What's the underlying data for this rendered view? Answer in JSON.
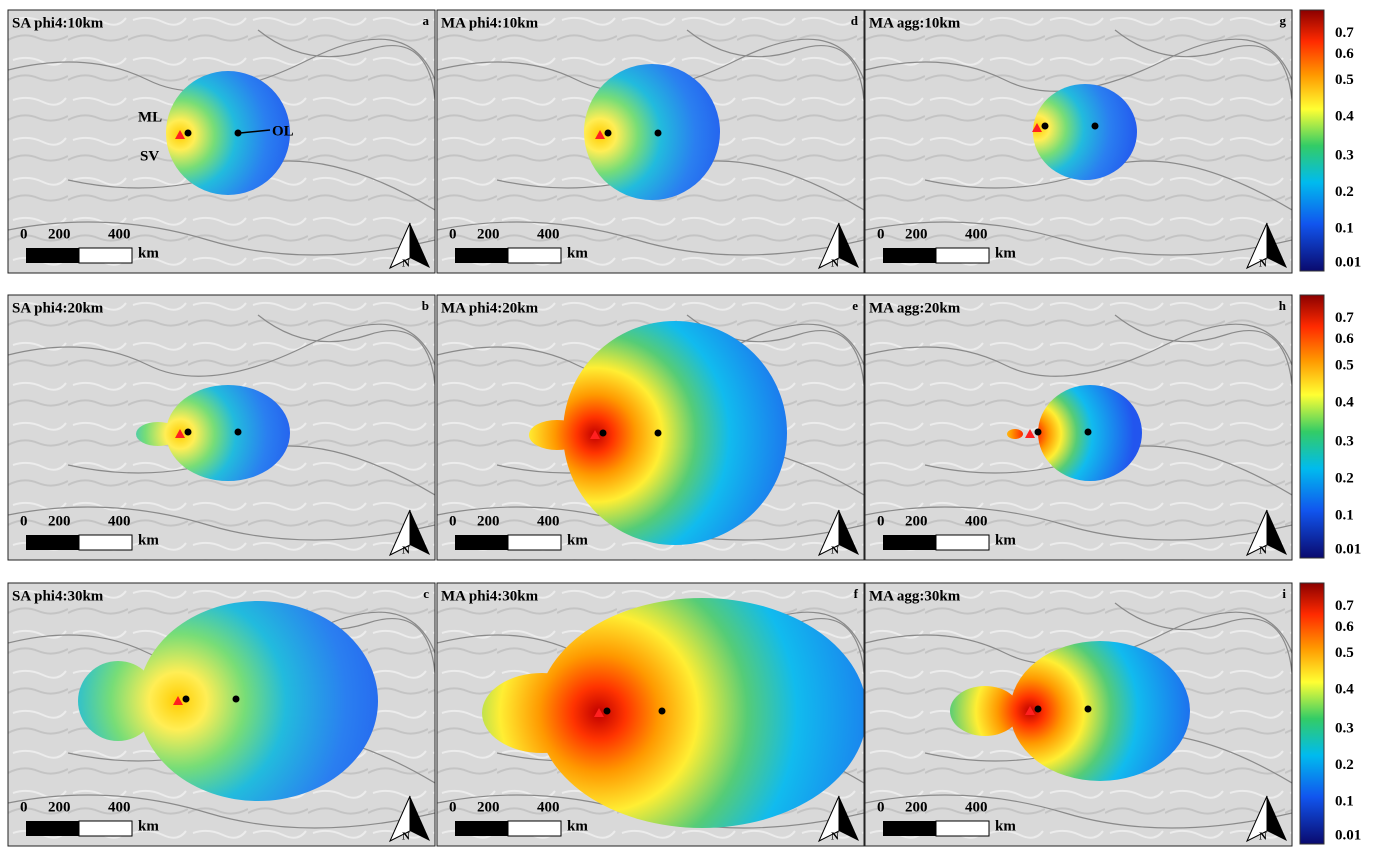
{
  "rows": [
    [
      {
        "title": "SA phi4:10km",
        "letter": "a"
      },
      {
        "title": "MA phi4:10km",
        "letter": "d"
      },
      {
        "title": "MA agg:10km",
        "letter": "g"
      }
    ],
    [
      {
        "title": "SA phi4:20km",
        "letter": "b"
      },
      {
        "title": "MA phi4:20km",
        "letter": "e"
      },
      {
        "title": "MA agg:20km",
        "letter": "h"
      }
    ],
    [
      {
        "title": "SA phi4:30km",
        "letter": "c"
      },
      {
        "title": "MA phi4:30km",
        "letter": "f"
      },
      {
        "title": "MA agg:30km",
        "letter": "i"
      }
    ]
  ],
  "site_labels": [
    "ML",
    "SV",
    "OL"
  ],
  "scale_bar": {
    "labels": [
      "0",
      "200",
      "400"
    ],
    "unit": "km"
  },
  "north": "N",
  "colorbar": {
    "ticks": [
      0.7,
      0.6,
      0.5,
      0.4,
      0.3,
      0.2,
      0.1,
      0.01
    ]
  }
}
